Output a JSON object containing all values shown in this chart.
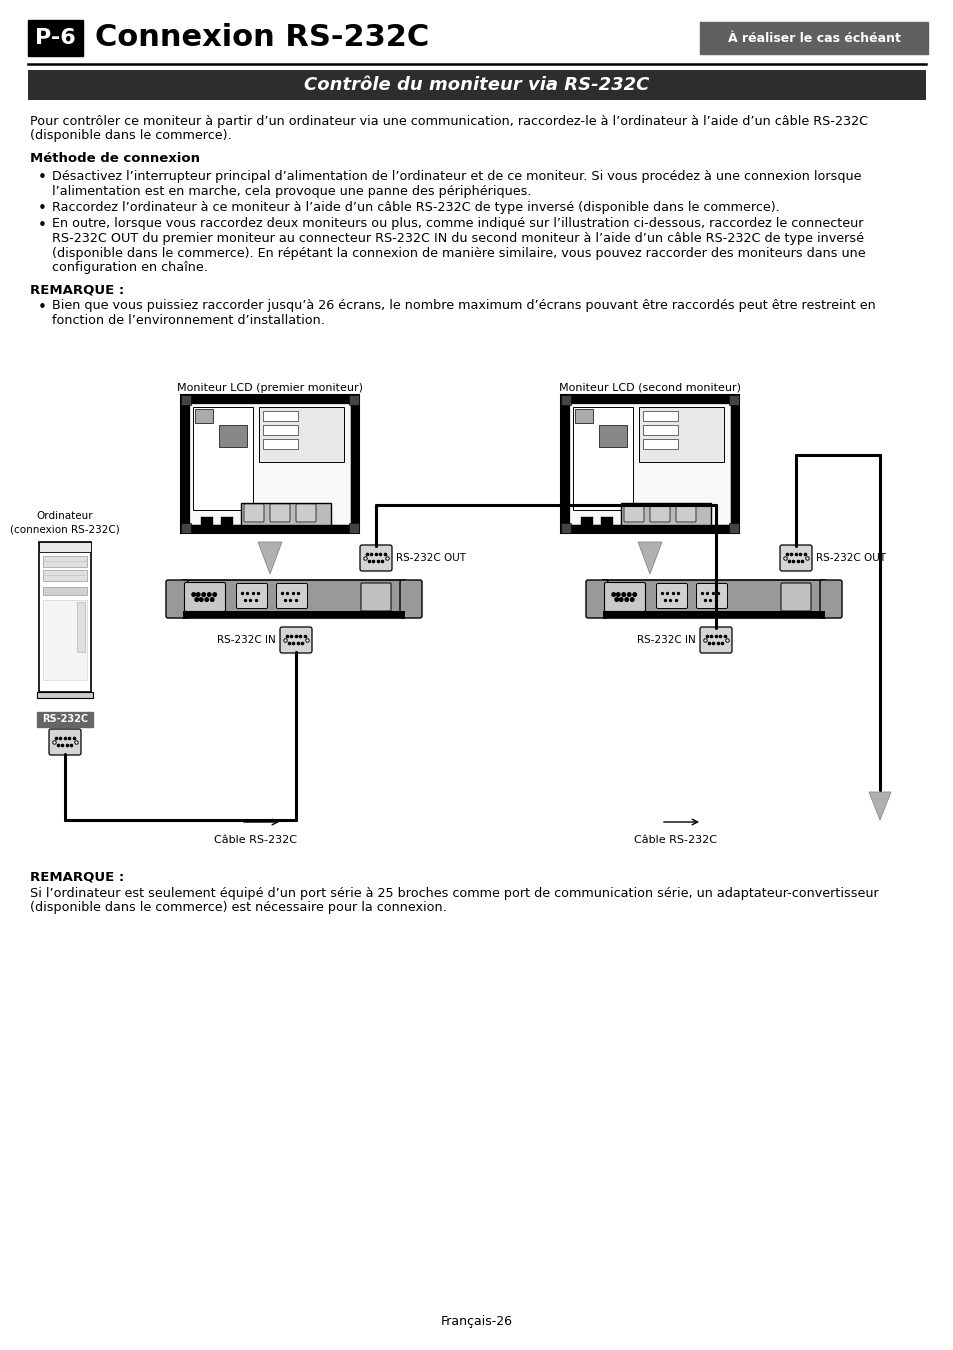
{
  "title_box": "P-6",
  "title_main": "Connexion RS-232C",
  "title_tag": "À réaliser le cas échéant",
  "subtitle": "Contrôle du moniteur via RS-232C",
  "intro_line1": "Pour contrôler ce moniteur à partir d’un ordinateur via une communication, raccordez-le à l’ordinateur à l’aide d’un câble RS-232C",
  "intro_line2": "(disponible dans le commerce).",
  "section1_title": "Méthode de connexion",
  "b1l1": "Désactivez l’interrupteur principal d’alimentation de l’ordinateur et de ce moniteur. Si vous procédez à une connexion lorsque",
  "b1l2": "l’alimentation est en marche, cela provoque une panne des périphériques.",
  "b2": "Raccordez l’ordinateur à ce moniteur à l’aide d’un câble RS-232C de type inversé (disponible dans le commerce).",
  "b3l1": "En outre, lorsque vous raccordez deux moniteurs ou plus, comme indiqué sur l’illustration ci-dessous, raccordez le connecteur",
  "b3l2": "RS-232C OUT du premier moniteur au connecteur RS-232C IN du second moniteur à l’aide d’un câble RS-232C de type inversé",
  "b3l3": "(disponible dans le commerce). En répétant la connexion de manière similaire, vous pouvez raccorder des moniteurs dans une",
  "b3l4": "configuration en chaîne.",
  "rem1_title": "REMARQUE :",
  "rem1l1": "Bien que vous puissiez raccorder jusqu’à 26 écrans, le nombre maximum d’écrans pouvant être raccordés peut être restreint en",
  "rem1l2": "fonction de l’environnement d’installation.",
  "lbl_mon1": "Moniteur LCD (premier moniteur)",
  "lbl_mon2": "Moniteur LCD (second moniteur)",
  "lbl_comp": "Ordinateur\n(connexion RS-232C)",
  "lbl_out1": "RS-232C OUT",
  "lbl_in1": "RS-232C IN",
  "lbl_out2": "RS-232C OUT",
  "lbl_in2": "RS-232C IN",
  "lbl_rs232c": "RS-232C",
  "lbl_cable1": "Câble RS-232C",
  "lbl_cable2": "Câble RS-232C",
  "rem2_title": "REMARQUE :",
  "rem2l1": "Si l’ordinateur est seulement équipé d’un port série à 25 broches comme port de communication série, un adaptateur-convertisseur",
  "rem2l2": "(disponible dans le commerce) est nécessaire pour la connexion.",
  "footer": "Français-26"
}
